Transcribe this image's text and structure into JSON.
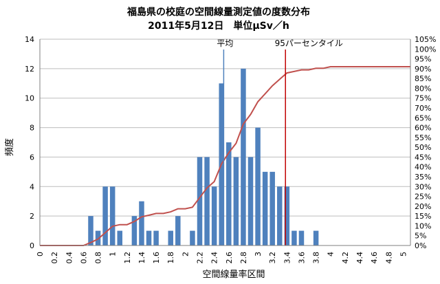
{
  "chart_data": {
    "type": "bar",
    "title": "福島県の校庭の空間線量測定値の度数分布",
    "subtitle": "2011年5月12日　単位μSv／h",
    "xlabel": "空間線量率区間",
    "ylabel": "頻度",
    "xlim": [
      0,
      5.1
    ],
    "ylim": [
      0,
      14
    ],
    "y2lim": [
      0,
      105
    ],
    "x_tick_labels": [
      "0",
      "0.2",
      "0.4",
      "0.6",
      "0.8",
      "1",
      "1.2",
      "1.4",
      "1.6",
      "1.8",
      "2",
      "2.2",
      "2.4",
      "2.6",
      "2.8",
      "3",
      "3.2",
      "3.4",
      "3.6",
      "3.8",
      "4",
      "4.2",
      "4.4",
      "4.6",
      "4.8",
      "5"
    ],
    "y_tick_labels": [
      "0",
      "2",
      "4",
      "6",
      "8",
      "10",
      "12",
      "14"
    ],
    "y2_tick_labels": [
      "0%",
      "5%",
      "10%",
      "15%",
      "20%",
      "25%",
      "30%",
      "35%",
      "40%",
      "45%",
      "50%",
      "55%",
      "60%",
      "65%",
      "70%",
      "75%",
      "80%",
      "85%",
      "90%",
      "95%",
      "100%",
      "105%"
    ],
    "series": [
      {
        "type": "bar",
        "color": "#4F81BD",
        "x": [
          0.7,
          0.8,
          0.9,
          1.0,
          1.1,
          1.3,
          1.4,
          1.5,
          1.6,
          1.8,
          1.9,
          2.1,
          2.2,
          2.3,
          2.4,
          2.5,
          2.6,
          2.7,
          2.8,
          2.9,
          3.0,
          3.1,
          3.2,
          3.3,
          3.4,
          3.5,
          3.6,
          3.8
        ],
        "values": [
          2,
          1,
          4,
          4,
          1,
          2,
          3,
          1,
          1,
          1,
          2,
          1,
          6,
          6,
          4,
          11,
          7,
          6,
          12,
          6,
          8,
          5,
          5,
          4,
          4,
          1,
          1,
          1
        ]
      },
      {
        "type": "line",
        "axis": "right",
        "color": "#C0504D",
        "x": [
          0,
          0.1,
          0.2,
          0.3,
          0.4,
          0.5,
          0.6,
          0.7,
          0.8,
          0.9,
          1.0,
          1.1,
          1.2,
          1.3,
          1.4,
          1.5,
          1.6,
          1.7,
          1.8,
          1.9,
          2.0,
          2.1,
          2.2,
          2.3,
          2.4,
          2.5,
          2.6,
          2.7,
          2.8,
          2.9,
          3.0,
          3.1,
          3.2,
          3.3,
          3.4,
          3.5,
          3.6,
          3.7,
          3.8,
          3.9,
          4.0,
          4.2,
          4.4,
          4.6,
          4.8,
          5.0,
          5.1
        ],
        "values": [
          0,
          0,
          0,
          0,
          0,
          0,
          0,
          1.5,
          3.3,
          6.5,
          9.8,
          10.6,
          10.6,
          12.2,
          14.6,
          15.4,
          16.3,
          16.3,
          17.1,
          18.7,
          18.7,
          19.5,
          24.4,
          29.3,
          32.5,
          41.5,
          47.2,
          52.0,
          61.8,
          66.7,
          73.2,
          77.2,
          81.3,
          84.6,
          87.8,
          88.6,
          89.4,
          89.4,
          90.2,
          90.2,
          91.0,
          91.0,
          91.0,
          91.0,
          91.0,
          91.0,
          91.0
        ]
      }
    ],
    "annotations": [
      {
        "label": "平均",
        "x": 2.53
      },
      {
        "label": "95パーセンタイル",
        "x": 3.38
      }
    ],
    "grid": "horizontal",
    "legend": "none"
  }
}
